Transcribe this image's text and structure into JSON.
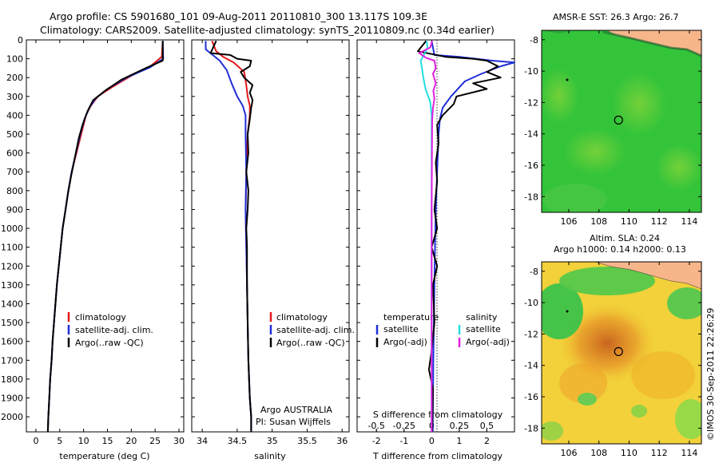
{
  "title_line1": "Argo profile: CS 5901680_101 09-Aug-2011 20110810_300 13.117S 109.3E",
  "title_line2": "Climatology: CARS2009. Satellite-adjusted climatology: synTS_20110809.nc (0.34d earlier)",
  "sst_title": "AMSR-E SST: 26.3 Argo: 26.7",
  "sla_title1": "Altim. SLA: 0.24",
  "sla_title2": "Argo h1000: 0.14 h2000: 0.13",
  "credit": "©IMOS 30-Sep-2011 22:26:29",
  "colors": {
    "climatology": "#e41a1c",
    "satellite": "#1f2fd6",
    "argo": "#000000",
    "sal_satellite": "#22dde0",
    "sal_argo": "#e020e0",
    "land": "#f7b58a"
  },
  "chart_data": [
    {
      "id": "temp",
      "type": "line",
      "xlabel": "temperature (deg C)",
      "xlim": [
        -2,
        31
      ],
      "ylim": [
        2080,
        0
      ],
      "xticks": [
        0,
        5,
        10,
        15,
        20,
        25,
        30
      ],
      "yticks": [
        0,
        100,
        200,
        300,
        400,
        500,
        600,
        700,
        800,
        900,
        1000,
        1100,
        1200,
        1300,
        1400,
        1500,
        1600,
        1700,
        1800,
        1900,
        2000
      ],
      "legend": [
        "climatology",
        "satellite-adj. clim.",
        "Argo(..raw -QC)"
      ],
      "series": [
        {
          "name": "climatology",
          "key": "climatology",
          "points": [
            [
              26.6,
              5
            ],
            [
              26.4,
              90
            ],
            [
              24,
              140
            ],
            [
              20,
              190
            ],
            [
              16,
              250
            ],
            [
              13,
              300
            ],
            [
              11.5,
              350
            ],
            [
              10.5,
              400
            ],
            [
              9.5,
              500
            ],
            [
              8.5,
              600
            ],
            [
              7.5,
              700
            ],
            [
              6.8,
              800
            ],
            [
              6.2,
              900
            ],
            [
              5.6,
              1000
            ],
            [
              5.2,
              1100
            ],
            [
              4.8,
              1200
            ],
            [
              4.4,
              1300
            ],
            [
              4.1,
              1400
            ],
            [
              3.8,
              1500
            ],
            [
              3.5,
              1600
            ],
            [
              3.3,
              1700
            ],
            [
              3.0,
              1800
            ],
            [
              2.8,
              1900
            ],
            [
              2.6,
              2000
            ],
            [
              2.5,
              2080
            ]
          ]
        },
        {
          "name": "satellite-adj. clim.",
          "key": "satellite",
          "points": [
            [
              26.6,
              5
            ],
            [
              26.7,
              100
            ],
            [
              24,
              145
            ],
            [
              19,
              200
            ],
            [
              15,
              260
            ],
            [
              12.5,
              310
            ],
            [
              11.2,
              360
            ],
            [
              10.2,
              420
            ],
            [
              9.3,
              500
            ],
            [
              8.4,
              600
            ],
            [
              7.5,
              700
            ],
            [
              6.8,
              800
            ],
            [
              6.2,
              900
            ],
            [
              5.6,
              1000
            ],
            [
              5.2,
              1100
            ],
            [
              4.8,
              1200
            ],
            [
              4.4,
              1300
            ],
            [
              4.1,
              1400
            ],
            [
              3.8,
              1500
            ],
            [
              3.5,
              1600
            ],
            [
              3.3,
              1700
            ],
            [
              3.0,
              1800
            ],
            [
              2.8,
              1900
            ],
            [
              2.6,
              2000
            ],
            [
              2.5,
              2080
            ]
          ]
        },
        {
          "name": "Argo(..raw -QC)",
          "key": "argo",
          "points": [
            [
              26.6,
              5
            ],
            [
              26.6,
              110
            ],
            [
              23,
              150
            ],
            [
              18,
              210
            ],
            [
              14.5,
              270
            ],
            [
              12,
              320
            ],
            [
              10.8,
              380
            ],
            [
              9.8,
              450
            ],
            [
              9,
              520
            ],
            [
              8.2,
              620
            ],
            [
              7.4,
              720
            ],
            [
              6.7,
              820
            ],
            [
              6.1,
              920
            ],
            [
              5.6,
              1000
            ],
            [
              5.2,
              1100
            ],
            [
              4.8,
              1200
            ],
            [
              4.4,
              1300
            ],
            [
              4.1,
              1400
            ],
            [
              3.8,
              1500
            ],
            [
              3.5,
              1600
            ],
            [
              3.3,
              1700
            ],
            [
              3.0,
              1800
            ],
            [
              2.8,
              1900
            ],
            [
              2.6,
              2000
            ],
            [
              2.5,
              2080
            ]
          ]
        }
      ]
    },
    {
      "id": "salinity",
      "type": "line",
      "xlabel": "salinity",
      "xlim": [
        33.85,
        36.1
      ],
      "ylim": [
        2080,
        0
      ],
      "xticks": [
        34,
        34.5,
        35,
        35.5,
        36
      ],
      "legend": [
        "climatology",
        "satellite-adj. clim.",
        "Argo(..raw -QC)"
      ],
      "annotation1": "Argo AUSTRALIA",
      "annotation2": "PI: Susan Wijffels",
      "series": [
        {
          "name": "climatology",
          "key": "climatology",
          "points": [
            [
              34.14,
              5
            ],
            [
              34.2,
              60
            ],
            [
              34.3,
              90
            ],
            [
              34.45,
              120
            ],
            [
              34.6,
              170
            ],
            [
              34.63,
              240
            ],
            [
              34.65,
              300
            ],
            [
              34.68,
              350
            ],
            [
              34.68,
              400
            ],
            [
              34.65,
              500
            ],
            [
              34.63,
              700
            ],
            [
              34.62,
              900
            ],
            [
              34.63,
              1100
            ],
            [
              34.64,
              1300
            ],
            [
              34.65,
              1500
            ],
            [
              34.66,
              1700
            ],
            [
              34.68,
              1900
            ],
            [
              34.7,
              2000
            ],
            [
              34.7,
              2080
            ]
          ]
        },
        {
          "name": "satellite-adj. clim.",
          "key": "satellite",
          "points": [
            [
              34.05,
              5
            ],
            [
              34.05,
              50
            ],
            [
              34.15,
              80
            ],
            [
              34.25,
              110
            ],
            [
              34.35,
              160
            ],
            [
              34.42,
              230
            ],
            [
              34.5,
              300
            ],
            [
              34.58,
              350
            ],
            [
              34.62,
              400
            ],
            [
              34.62,
              500
            ],
            [
              34.63,
              700
            ],
            [
              34.62,
              900
            ],
            [
              34.63,
              1100
            ],
            [
              34.64,
              1300
            ],
            [
              34.65,
              1500
            ],
            [
              34.66,
              1700
            ],
            [
              34.68,
              1900
            ],
            [
              34.7,
              2000
            ],
            [
              34.7,
              2080
            ]
          ]
        },
        {
          "name": "Argo(..raw -QC)",
          "key": "argo",
          "points": [
            [
              34.2,
              5
            ],
            [
              34.12,
              70
            ],
            [
              34.4,
              80
            ],
            [
              34.5,
              100
            ],
            [
              34.7,
              110
            ],
            [
              34.68,
              140
            ],
            [
              34.55,
              170
            ],
            [
              34.6,
              200
            ],
            [
              34.72,
              240
            ],
            [
              34.68,
              280
            ],
            [
              34.72,
              320
            ],
            [
              34.7,
              360
            ],
            [
              34.68,
              420
            ],
            [
              34.65,
              500
            ],
            [
              34.66,
              600
            ],
            [
              34.63,
              700
            ],
            [
              34.66,
              800
            ],
            [
              34.65,
              900
            ],
            [
              34.63,
              1000
            ],
            [
              34.64,
              1100
            ],
            [
              34.64,
              1300
            ],
            [
              34.65,
              1500
            ],
            [
              34.66,
              1700
            ],
            [
              34.68,
              1900
            ],
            [
              34.7,
              2000
            ],
            [
              34.7,
              2080
            ]
          ]
        }
      ]
    },
    {
      "id": "diff",
      "type": "line",
      "xlabel": "T difference from climatology",
      "xlabel_top": "S difference from climatology",
      "xlim": [
        -2.7,
        3.0
      ],
      "ylim": [
        2080,
        0
      ],
      "xticks": [
        -2,
        -1,
        0,
        1,
        2
      ],
      "xticks_top": [
        {
          "v": -0.5,
          "l": "-0.5"
        },
        {
          "v": -0.25,
          "l": "-0.25"
        },
        {
          "v": 0,
          "l": "0"
        },
        {
          "v": 0.25,
          "l": "0.25"
        },
        {
          "v": 0.5,
          "l": "0.5"
        }
      ],
      "legend_temp_title": "temperature",
      "legend_sal_title": "salinity",
      "legend_temp": [
        "satellite",
        "Argo(-adj)"
      ],
      "legend_sal": [
        "satellite",
        "Argo(-adj)"
      ],
      "series": [
        {
          "name": "satellite",
          "key": "satellite",
          "points": [
            [
              0,
              5
            ],
            [
              0.1,
              80
            ],
            [
              1,
              90
            ],
            [
              2.2,
              110
            ],
            [
              3.0,
              120
            ],
            [
              2.5,
              140
            ],
            [
              1.8,
              180
            ],
            [
              1.2,
              220
            ],
            [
              0.7,
              300
            ],
            [
              0.4,
              360
            ],
            [
              0.3,
              420
            ],
            [
              0.25,
              500
            ],
            [
              0.2,
              700
            ],
            [
              0.15,
              900
            ],
            [
              0.12,
              1100
            ],
            [
              0.1,
              1300
            ],
            [
              0.08,
              1500
            ],
            [
              0.06,
              1700
            ],
            [
              0.05,
              1900
            ],
            [
              0.04,
              2080
            ]
          ]
        },
        {
          "name": "Argo(-adj)",
          "key": "argo",
          "points": [
            [
              -0.2,
              5
            ],
            [
              -0.5,
              60
            ],
            [
              0.5,
              90
            ],
            [
              1.5,
              100
            ],
            [
              2.0,
              110
            ],
            [
              2.4,
              140
            ],
            [
              2.0,
              170
            ],
            [
              2.5,
              200
            ],
            [
              1.5,
              230
            ],
            [
              2.0,
              260
            ],
            [
              0.9,
              300
            ],
            [
              0.8,
              340
            ],
            [
              0.4,
              400
            ],
            [
              0.2,
              450
            ],
            [
              0.25,
              550
            ],
            [
              0.15,
              650
            ],
            [
              0.2,
              750
            ],
            [
              0.1,
              900
            ],
            [
              0.2,
              1000
            ],
            [
              0.0,
              1100
            ],
            [
              0.2,
              1200
            ],
            [
              0.05,
              1300
            ],
            [
              0.1,
              1500
            ],
            [
              0.0,
              1650
            ],
            [
              -0.1,
              1750
            ],
            [
              0.05,
              1850
            ],
            [
              0.02,
              2080
            ]
          ]
        },
        {
          "name": "salinity satellite",
          "key": "sal_satellite",
          "points": [
            [
              -0.18,
              5
            ],
            [
              -0.15,
              40
            ],
            [
              -0.28,
              80
            ],
            [
              -0.4,
              110
            ],
            [
              -0.35,
              150
            ],
            [
              -0.3,
              200
            ],
            [
              -0.22,
              260
            ],
            [
              -0.05,
              330
            ],
            [
              0.0,
              400
            ],
            [
              0.0,
              600
            ],
            [
              0.0,
              900
            ],
            [
              0.0,
              1200
            ],
            [
              0.0,
              1500
            ],
            [
              0.0,
              1800
            ],
            [
              0.0,
              2080
            ]
          ]
        },
        {
          "name": "salinity Argo(-adj)",
          "key": "sal_argo",
          "points": [
            [
              0.02,
              5
            ],
            [
              -0.05,
              40
            ],
            [
              -0.45,
              70
            ],
            [
              -0.2,
              95
            ],
            [
              0.1,
              110
            ],
            [
              0.15,
              150
            ],
            [
              0.05,
              180
            ],
            [
              0.15,
              230
            ],
            [
              0.06,
              270
            ],
            [
              0.1,
              310
            ],
            [
              0.05,
              360
            ],
            [
              0.02,
              420
            ],
            [
              0.01,
              600
            ],
            [
              0.0,
              900
            ],
            [
              0.0,
              1200
            ],
            [
              0.0,
              1600
            ],
            [
              0.0,
              2080
            ]
          ]
        }
      ]
    },
    {
      "id": "sst_map",
      "type": "heatmap",
      "xlim": [
        104.2,
        114.8
      ],
      "ylim": [
        -19,
        -7.4
      ],
      "xticks": [
        106,
        108,
        110,
        112,
        114
      ],
      "yticks": [
        -8,
        -10,
        -12,
        -14,
        -16,
        -18
      ],
      "argo_point": [
        109.3,
        -13.117
      ]
    },
    {
      "id": "sla_map",
      "type": "heatmap",
      "xlim": [
        104.2,
        114.8
      ],
      "ylim": [
        -19,
        -7.4
      ],
      "xticks": [
        106,
        108,
        110,
        112,
        114
      ],
      "yticks": [
        -8,
        -10,
        -12,
        -14,
        -16,
        -18
      ],
      "argo_point": [
        109.3,
        -13.117
      ]
    }
  ]
}
